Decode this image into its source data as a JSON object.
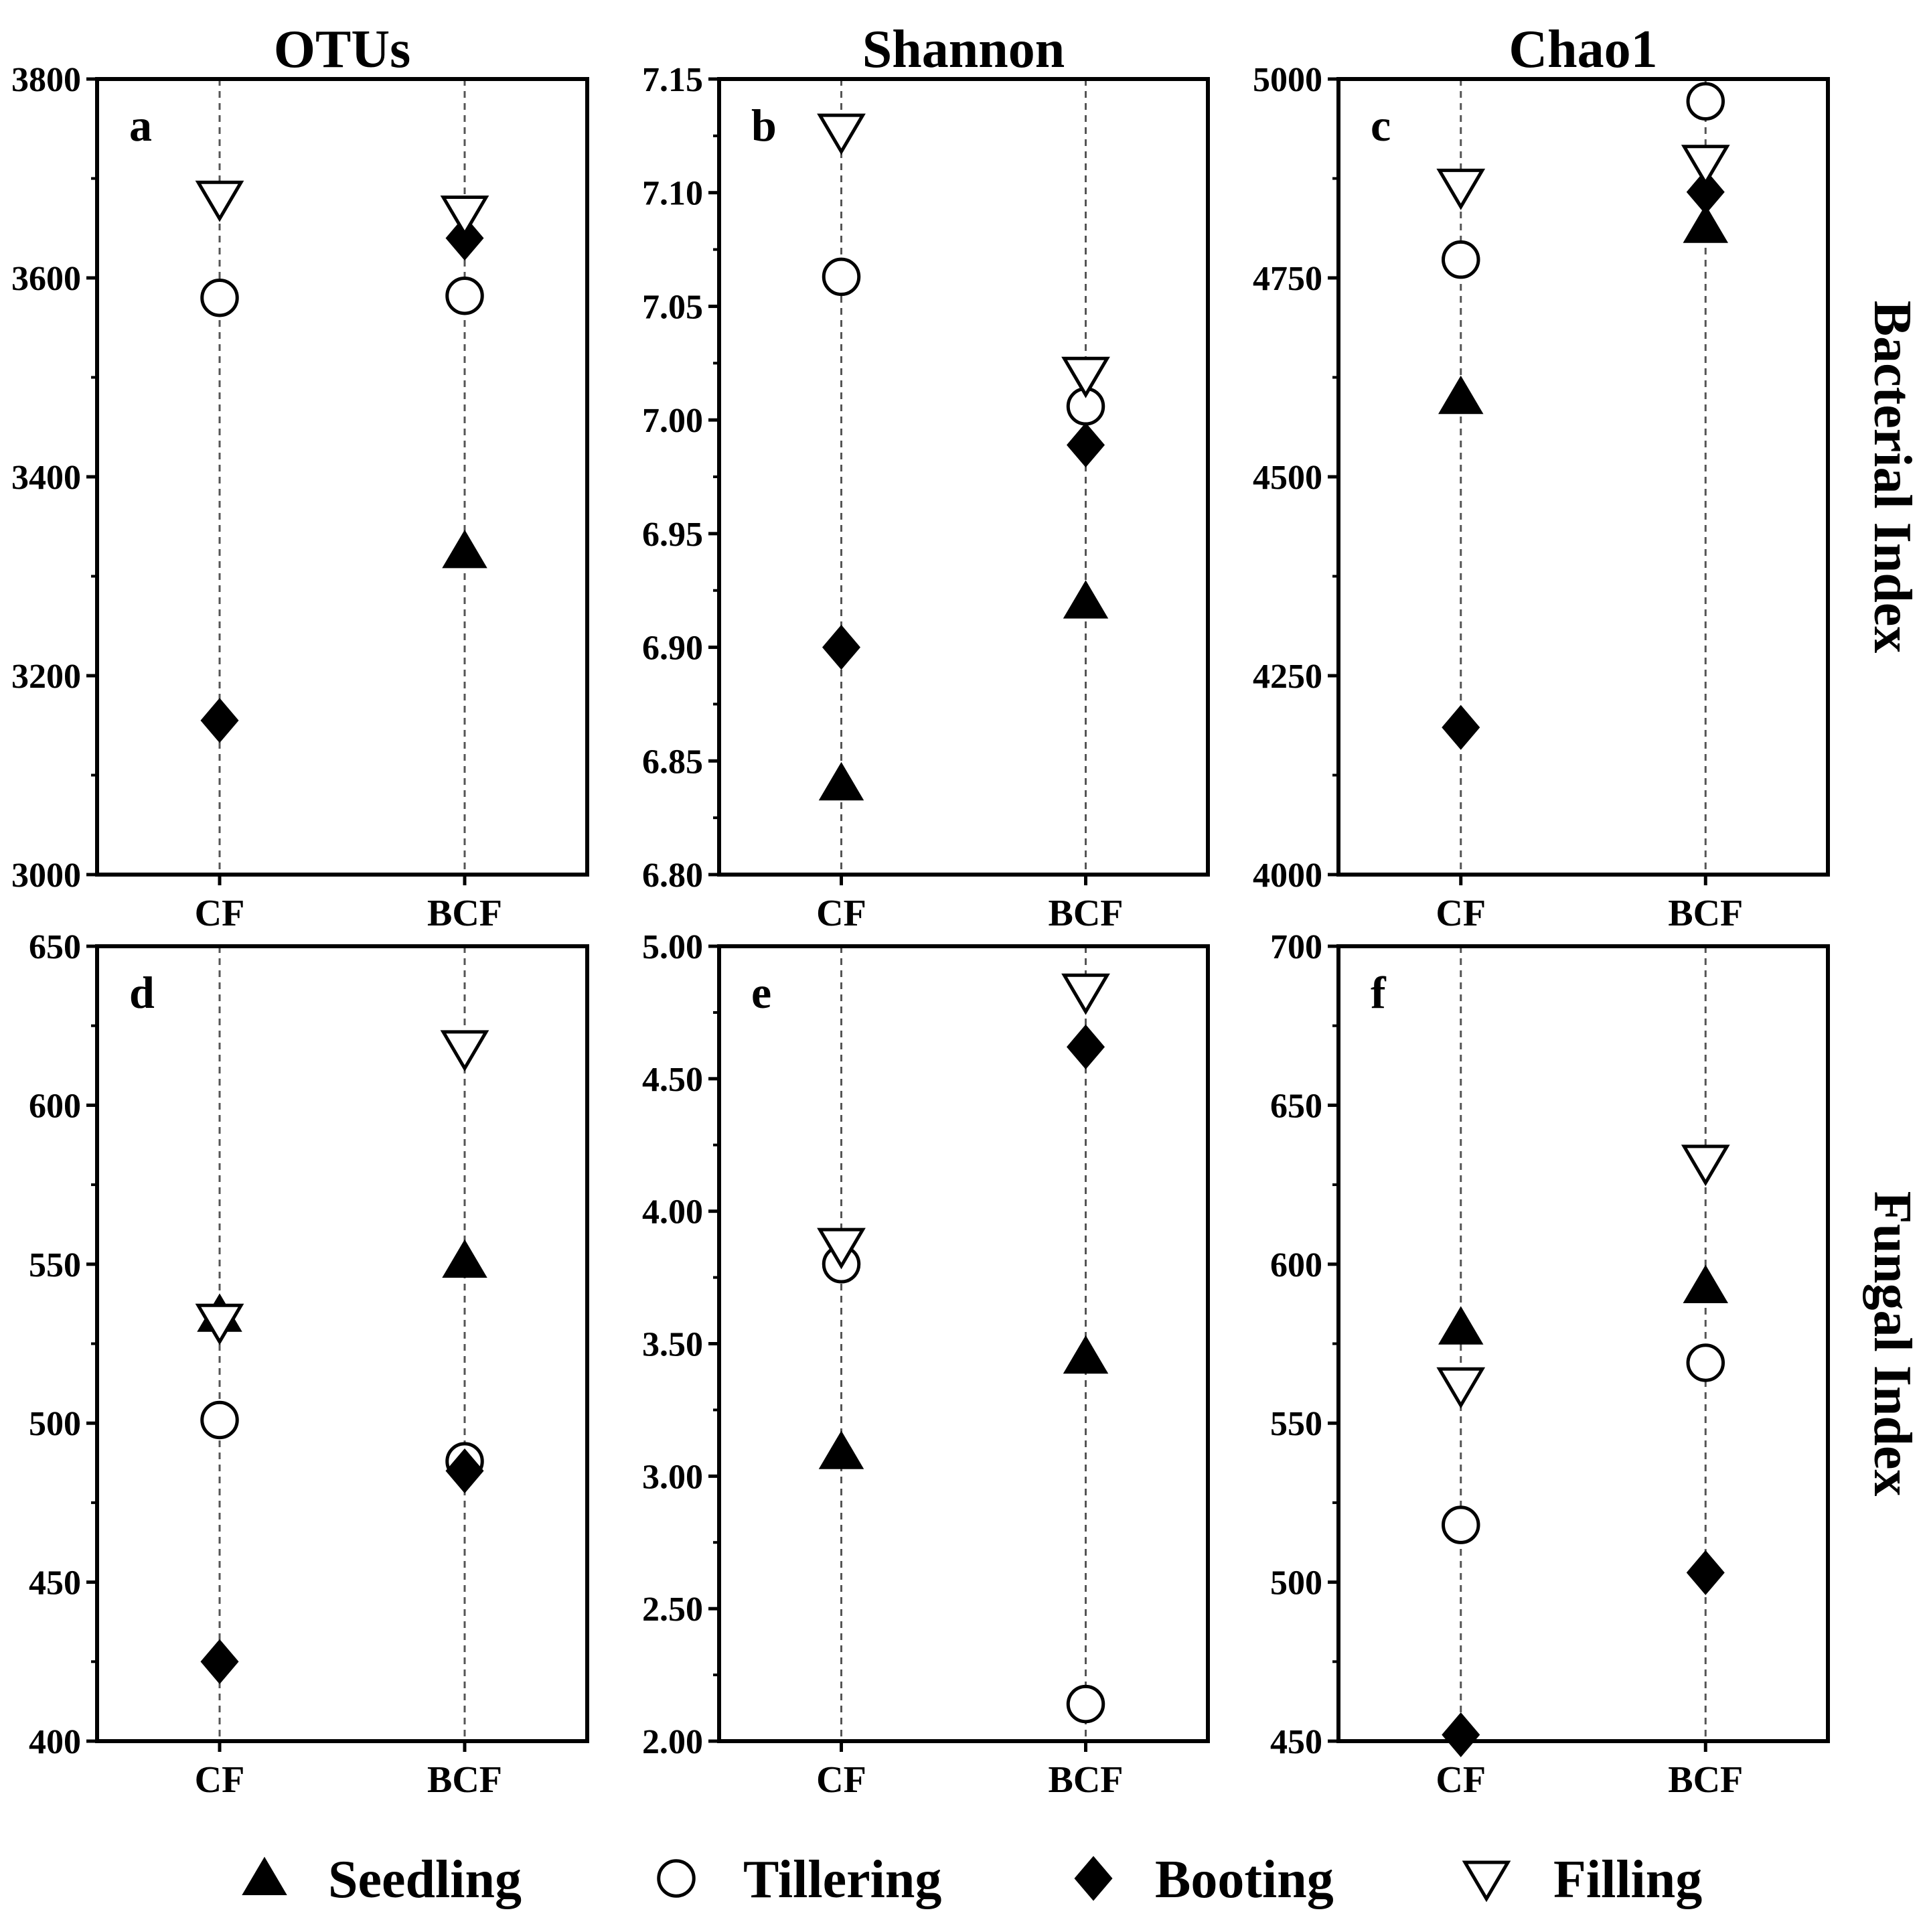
{
  "chart_data": [
    {
      "type": "scatter",
      "panel": "a",
      "title": "OTUs",
      "categories": [
        "CF",
        "BCF"
      ],
      "ylim": [
        3000,
        3800
      ],
      "yticks": [
        3000,
        3200,
        3400,
        3600,
        3800
      ],
      "ytick_labels": [
        "3000",
        "3200",
        "3400",
        "3600",
        "3800"
      ],
      "series": [
        {
          "name": "Seedling",
          "values": [
            null,
            3325
          ]
        },
        {
          "name": "Tillering",
          "values": [
            3580,
            3582
          ]
        },
        {
          "name": "Booting",
          "values": [
            3155,
            3640
          ]
        },
        {
          "name": "Filling",
          "values": [
            3680,
            3665
          ]
        }
      ]
    },
    {
      "type": "scatter",
      "panel": "b",
      "title": "Shannon",
      "categories": [
        "CF",
        "BCF"
      ],
      "ylim": [
        6.8,
        7.15
      ],
      "yticks": [
        6.8,
        6.85,
        6.9,
        6.95,
        7.0,
        7.05,
        7.1,
        7.15
      ],
      "ytick_labels": [
        "6.80",
        "6.85",
        "6.90",
        "6.95",
        "7.00",
        "7.05",
        "7.10",
        "7.15"
      ],
      "series": [
        {
          "name": "Seedling",
          "values": [
            6.84,
            6.92
          ]
        },
        {
          "name": "Tillering",
          "values": [
            7.063,
            7.006
          ]
        },
        {
          "name": "Booting",
          "values": [
            6.9,
            6.989
          ]
        },
        {
          "name": "Filling",
          "values": [
            7.127,
            7.02
          ]
        }
      ]
    },
    {
      "type": "scatter",
      "panel": "c",
      "title": "Chao1",
      "categories": [
        "CF",
        "BCF"
      ],
      "ylim": [
        4000,
        5000
      ],
      "yticks": [
        4000,
        4250,
        4500,
        4750,
        5000
      ],
      "ytick_labels": [
        "4000",
        "4250",
        "4500",
        "4750",
        "5000"
      ],
      "series": [
        {
          "name": "Seedling",
          "values": [
            4600,
            4815
          ]
        },
        {
          "name": "Tillering",
          "values": [
            4773,
            4972
          ]
        },
        {
          "name": "Booting",
          "values": [
            4185,
            4858
          ]
        },
        {
          "name": "Filling",
          "values": [
            4865,
            4895
          ]
        }
      ]
    },
    {
      "type": "scatter",
      "panel": "d",
      "title": "",
      "categories": [
        "CF",
        "BCF"
      ],
      "ylim": [
        400,
        650
      ],
      "yticks": [
        400,
        450,
        500,
        550,
        600,
        650
      ],
      "ytick_labels": [
        "400",
        "450",
        "500",
        "550",
        "600",
        "650"
      ],
      "series": [
        {
          "name": "Seedling",
          "values": [
            534,
            551
          ]
        },
        {
          "name": "Tillering",
          "values": [
            501,
            488
          ]
        },
        {
          "name": "Booting",
          "values": [
            425,
            485
          ]
        },
        {
          "name": "Filling",
          "values": [
            532,
            618
          ]
        }
      ]
    },
    {
      "type": "scatter",
      "panel": "e",
      "title": "",
      "categories": [
        "CF",
        "BCF"
      ],
      "ylim": [
        2.0,
        5.0
      ],
      "yticks": [
        2.0,
        2.5,
        3.0,
        3.5,
        4.0,
        4.5,
        5.0
      ],
      "ytick_labels": [
        "2.00",
        "2.50",
        "3.00",
        "3.50",
        "4.00",
        "4.50",
        "5.00"
      ],
      "series": [
        {
          "name": "Seedling",
          "values": [
            3.09,
            3.45
          ]
        },
        {
          "name": "Tillering",
          "values": [
            3.8,
            2.14
          ]
        },
        {
          "name": "Booting",
          "values": [
            null,
            4.62
          ]
        },
        {
          "name": "Filling",
          "values": [
            3.87,
            4.83
          ]
        }
      ]
    },
    {
      "type": "scatter",
      "panel": "f",
      "title": "",
      "categories": [
        "CF",
        "BCF"
      ],
      "ylim": [
        450,
        700
      ],
      "yticks": [
        450,
        500,
        550,
        600,
        650,
        700
      ],
      "ytick_labels": [
        "450",
        "500",
        "550",
        "600",
        "650",
        "700"
      ],
      "series": [
        {
          "name": "Seedling",
          "values": [
            580,
            593
          ]
        },
        {
          "name": "Tillering",
          "values": [
            518,
            569
          ]
        },
        {
          "name": "Booting",
          "values": [
            452,
            503
          ]
        },
        {
          "name": "Filling",
          "values": [
            562,
            632
          ]
        }
      ]
    }
  ],
  "row_labels": [
    "Bacterial  Index",
    "Fungal  Index"
  ],
  "legend": [
    {
      "name": "Seedling",
      "marker": "triangle-up-filled"
    },
    {
      "name": "Tillering",
      "marker": "circle-open"
    },
    {
      "name": "Booting",
      "marker": "diamond-filled"
    },
    {
      "name": "Filling",
      "marker": "triangle-down-open"
    }
  ],
  "colors": {
    "marker": "#000000",
    "background": "#ffffff"
  }
}
